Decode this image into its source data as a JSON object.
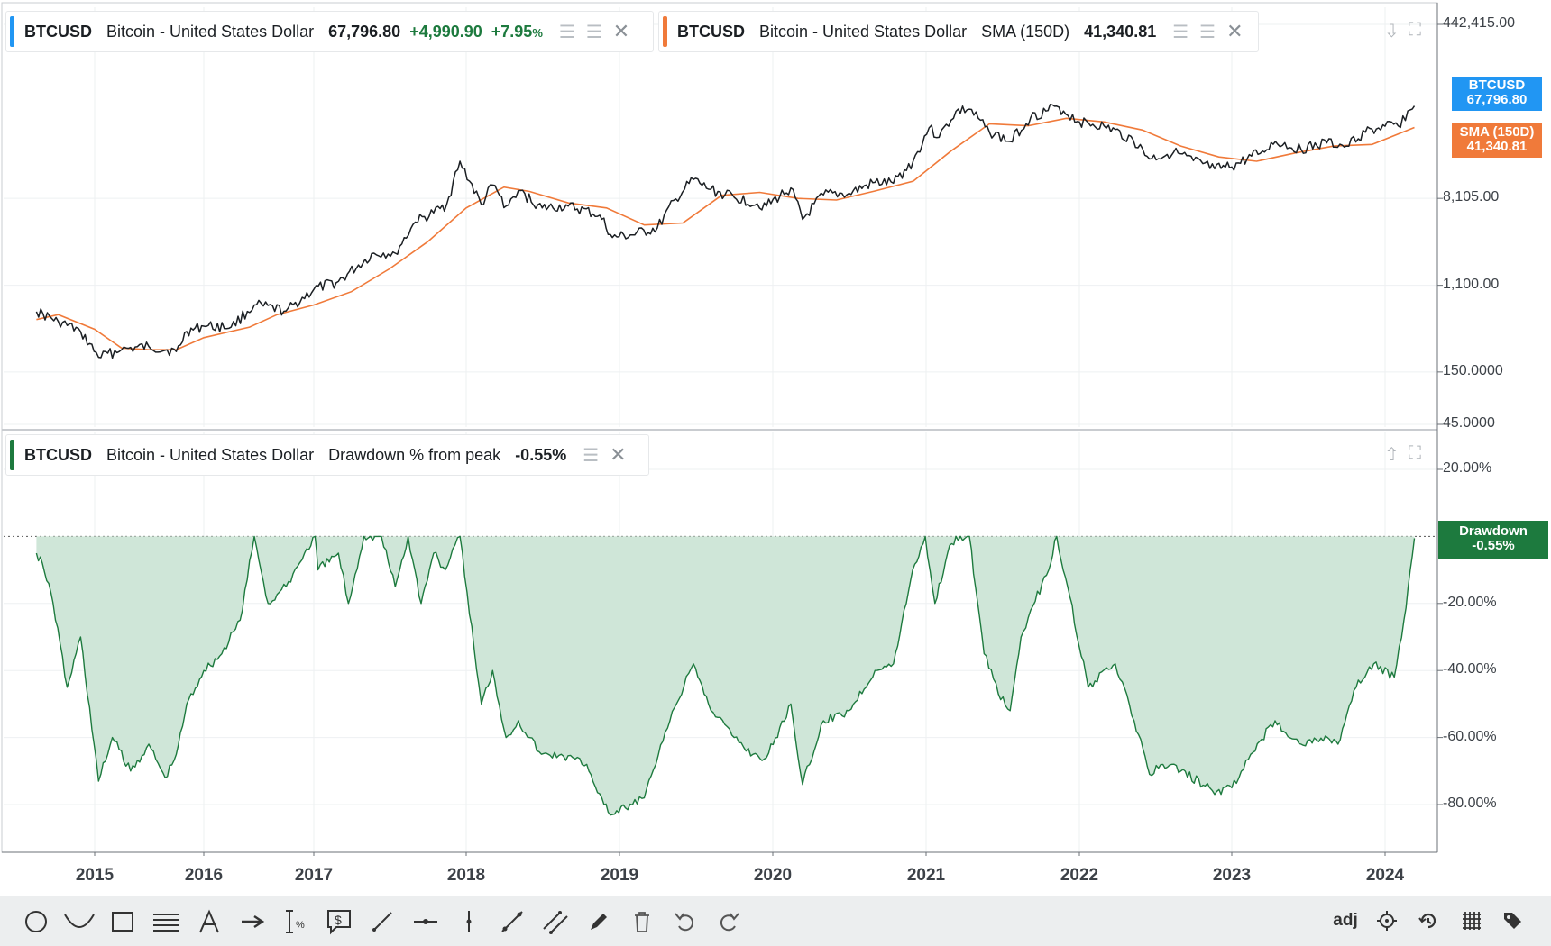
{
  "legends": {
    "price": {
      "symbol": "BTCUSD",
      "name": "Bitcoin - United States Dollar",
      "value": "67,796.80",
      "change": "+4,990.90",
      "change_pct": "+7.95",
      "pct_sign": "%",
      "color": "#2196f3"
    },
    "sma": {
      "symbol": "BTCUSD",
      "name": "Bitcoin - United States Dollar",
      "study": "SMA (150D)",
      "value": "41,340.81",
      "color": "#f07a3a"
    },
    "drawdown": {
      "symbol": "BTCUSD",
      "name": "Bitcoin - United States Dollar",
      "study": "Drawdown % from peak",
      "value": "-0.55%",
      "color": "#1d7a3e"
    }
  },
  "tags": {
    "price": {
      "line1": "BTCUSD",
      "line2": "67,796.80",
      "color": "#2196f3"
    },
    "sma": {
      "line1": "SMA (150D)",
      "line2": "41,340.81",
      "color": "#f07a3a"
    },
    "drawdown": {
      "line1": "Drawdown",
      "line2": "-0.55%",
      "color": "#1d7a3e"
    }
  },
  "toolbar": {
    "tools": [
      "circle",
      "arc",
      "rectangle",
      "horizontal-lines",
      "text",
      "arrow",
      "measure",
      "price-note",
      "line",
      "horizontal-segment",
      "vertical-line",
      "trend-line",
      "parallel-channel",
      "pencil",
      "trash",
      "undo",
      "redo"
    ],
    "right": {
      "adj_label": "adj"
    }
  },
  "chart_data": [
    {
      "type": "line",
      "title": "BTCUSD Bitcoin - United States Dollar",
      "y_scale": "log",
      "y_ticks": [
        "442,415.00",
        "8,105.00",
        "1,100.00",
        "150.0000",
        "45.0000"
      ],
      "y_tick_values": [
        442415,
        8105,
        1100,
        150,
        45
      ],
      "ylim": [
        45,
        442415
      ],
      "x_ticks": [
        "2015",
        "2016",
        "2017",
        "2018",
        "2019",
        "2020",
        "2021",
        "2022",
        "2023",
        "2024"
      ],
      "xlim": [
        "2014-06-20",
        "2024-03-12"
      ],
      "grid": true,
      "series": [
        {
          "name": "BTCUSD",
          "color": "#1b1f23",
          "x": [
            "2014-06-20",
            "2014-09-01",
            "2014-11-15",
            "2015-01-14",
            "2015-04-01",
            "2015-07-01",
            "2015-10-01",
            "2015-11-05",
            "2016-01-01",
            "2016-04-01",
            "2016-06-17",
            "2016-10-01",
            "2017-01-01",
            "2017-03-01",
            "2017-05-25",
            "2017-07-15",
            "2017-09-01",
            "2017-10-15",
            "2017-11-15",
            "2017-12-17",
            "2018-02-06",
            "2018-03-05",
            "2018-04-06",
            "2018-05-05",
            "2018-07-01",
            "2018-09-01",
            "2018-11-15",
            "2018-12-15",
            "2019-02-01",
            "2019-04-01",
            "2019-05-15",
            "2019-06-26",
            "2019-08-01",
            "2019-10-01",
            "2019-12-17",
            "2020-02-13",
            "2020-03-12",
            "2020-05-01",
            "2020-07-01",
            "2020-09-01",
            "2020-10-15",
            "2020-12-01",
            "2021-01-08",
            "2021-02-01",
            "2021-03-13",
            "2021-04-14",
            "2021-06-01",
            "2021-07-20",
            "2021-09-07",
            "2021-11-08",
            "2022-01-01",
            "2022-03-01",
            "2022-05-10",
            "2022-06-18",
            "2022-08-15",
            "2022-10-01",
            "2022-11-21",
            "2023-01-01",
            "2023-03-15",
            "2023-04-15",
            "2023-06-15",
            "2023-08-15",
            "2023-10-01",
            "2023-11-15",
            "2024-01-01",
            "2024-02-01",
            "2024-03-01",
            "2024-03-11"
          ],
          "y": [
            600,
            480,
            380,
            210,
            250,
            270,
            240,
            380,
            430,
            420,
            700,
            610,
            1000,
            1200,
            2300,
            2300,
            4700,
            5800,
            7000,
            19000,
            7000,
            11000,
            6800,
            9700,
            6500,
            6800,
            5500,
            3300,
            3500,
            4100,
            8000,
            12500,
            10000,
            8300,
            6800,
            10300,
            5000,
            8800,
            9100,
            11700,
            11500,
            19000,
            41000,
            33000,
            60000,
            63000,
            37000,
            30000,
            52000,
            67500,
            47000,
            43000,
            31000,
            20000,
            23500,
            19300,
            16000,
            16700,
            24000,
            30000,
            25000,
            29000,
            27000,
            37000,
            42500,
            43000,
            62000,
            67797
          ]
        },
        {
          "name": "SMA (150D)",
          "color": "#f07a3a",
          "x": [
            "2014-06-20",
            "2014-09-01",
            "2015-01-01",
            "2015-04-01",
            "2015-07-01",
            "2015-10-01",
            "2016-01-01",
            "2016-06-01",
            "2016-09-01",
            "2017-01-01",
            "2017-04-01",
            "2017-07-01",
            "2017-10-01",
            "2018-01-01",
            "2018-04-01",
            "2018-06-01",
            "2018-09-01",
            "2018-12-01",
            "2019-03-01",
            "2019-06-01",
            "2019-09-01",
            "2019-12-01",
            "2020-03-01",
            "2020-06-01",
            "2020-09-01",
            "2020-12-01",
            "2021-03-01",
            "2021-06-01",
            "2021-09-01",
            "2021-12-01",
            "2022-03-01",
            "2022-06-01",
            "2022-09-01",
            "2022-12-01",
            "2023-03-01",
            "2023-06-01",
            "2023-09-01",
            "2023-12-01",
            "2024-03-11"
          ],
          "y": [
            500,
            560,
            400,
            260,
            250,
            250,
            330,
            420,
            560,
            700,
            950,
            1600,
            3000,
            6500,
            10500,
            9500,
            7300,
            6500,
            4400,
            4600,
            8700,
            9300,
            8100,
            7800,
            9600,
            12000,
            24000,
            45000,
            43000,
            51000,
            47000,
            39000,
            27000,
            21000,
            19000,
            23000,
            27000,
            28000,
            41341
          ]
        }
      ]
    },
    {
      "type": "area",
      "title": "Drawdown % from peak",
      "y_ticks": [
        "20.00%",
        "-20.00%",
        "-40.00%",
        "-60.00%",
        "-80.00%"
      ],
      "y_tick_values": [
        20,
        -20,
        -40,
        -60,
        -80
      ],
      "ylim": [
        -95,
        30
      ],
      "grid": true,
      "series": [
        {
          "name": "Drawdown % from peak",
          "color": "#1d7a3e",
          "fill": "#cfe6d8",
          "x": [
            "2014-06-20",
            "2014-07-10",
            "2014-08-15",
            "2014-10-01",
            "2014-11-15",
            "2015-01-14",
            "2015-03-01",
            "2015-05-01",
            "2015-07-01",
            "2015-08-25",
            "2015-10-01",
            "2015-11-05",
            "2016-01-01",
            "2016-03-01",
            "2016-05-01",
            "2016-06-17",
            "2016-08-02",
            "2016-10-01",
            "2016-12-01",
            "2017-01-04",
            "2017-01-11",
            "2017-03-01",
            "2017-03-25",
            "2017-05-01",
            "2017-06-12",
            "2017-07-15",
            "2017-08-15",
            "2017-09-15",
            "2017-10-15",
            "2017-11-12",
            "2017-12-17",
            "2018-02-06",
            "2018-03-05",
            "2018-04-06",
            "2018-05-05",
            "2018-06-29",
            "2018-08-15",
            "2018-10-15",
            "2018-11-25",
            "2018-12-15",
            "2019-01-15",
            "2019-03-01",
            "2019-05-01",
            "2019-06-26",
            "2019-08-01",
            "2019-10-01",
            "2019-11-15",
            "2019-12-17",
            "2020-02-13",
            "2020-03-12",
            "2020-05-01",
            "2020-07-01",
            "2020-09-01",
            "2020-10-15",
            "2020-11-30",
            "2020-12-30",
            "2021-01-22",
            "2021-02-21",
            "2021-03-13",
            "2021-04-14",
            "2021-05-19",
            "2021-06-22",
            "2021-07-20",
            "2021-08-15",
            "2021-09-07",
            "2021-10-20",
            "2021-11-08",
            "2021-12-04",
            "2022-01-22",
            "2022-03-28",
            "2022-05-12",
            "2022-06-18",
            "2022-07-20",
            "2022-09-01",
            "2022-11-09",
            "2022-11-21",
            "2023-01-01",
            "2023-02-15",
            "2023-04-14",
            "2023-06-15",
            "2023-08-17",
            "2023-09-11",
            "2023-10-24",
            "2023-12-05",
            "2024-01-23",
            "2024-02-15",
            "2024-03-01",
            "2024-03-11"
          ],
          "y": [
            -5,
            -8,
            -20,
            -45,
            -30,
            -73,
            -60,
            -70,
            -62,
            -72,
            -65,
            -50,
            -40,
            -35,
            -25,
            0,
            -20,
            -15,
            -5,
            0,
            -10,
            -5,
            -20,
            0,
            0,
            -15,
            0,
            -20,
            -5,
            -10,
            0,
            -50,
            -40,
            -60,
            -55,
            -65,
            -65,
            -68,
            -80,
            -83,
            -81,
            -78,
            -55,
            -38,
            -50,
            -60,
            -65,
            -66,
            -50,
            -74,
            -55,
            -52,
            -40,
            -38,
            -10,
            0,
            -20,
            -5,
            0,
            0,
            -35,
            -47,
            -52,
            -30,
            -22,
            -10,
            0,
            -15,
            -45,
            -38,
            -55,
            -71,
            -68,
            -70,
            -75,
            -77,
            -75,
            -65,
            -55,
            -62,
            -60,
            -62,
            -45,
            -38,
            -42,
            -25,
            -10,
            -0.55
          ]
        }
      ]
    }
  ]
}
